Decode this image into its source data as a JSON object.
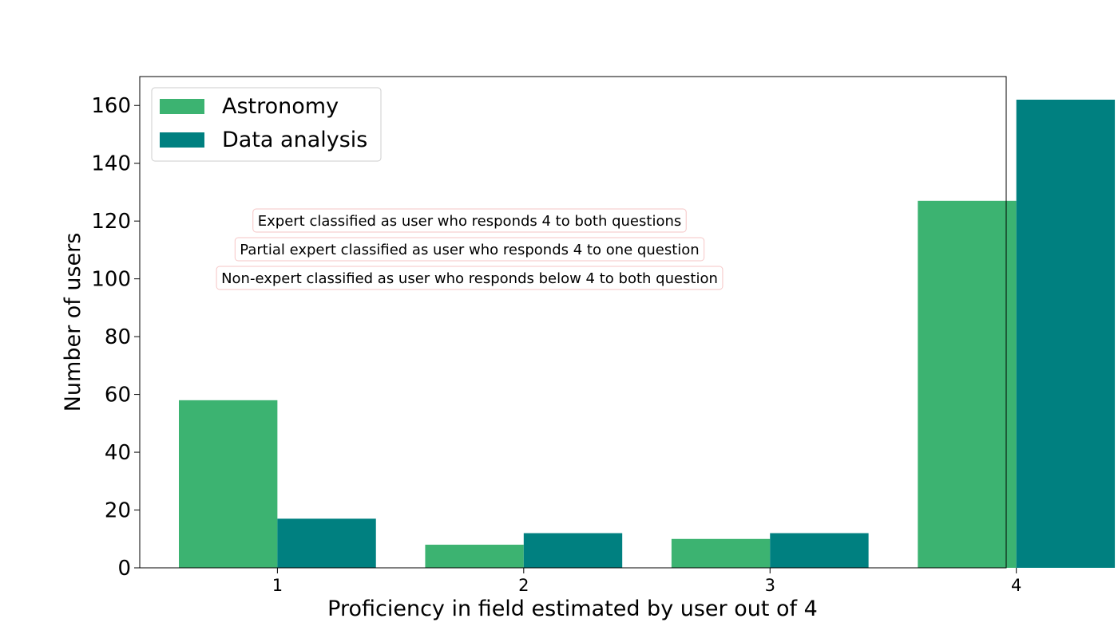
{
  "chart_data": {
    "type": "bar",
    "categories": [
      "1",
      "2",
      "3",
      "4"
    ],
    "series": [
      {
        "name": "Astronomy",
        "values": [
          58,
          8,
          10,
          127
        ],
        "color": "#3cb371"
      },
      {
        "name": "Data analysis",
        "values": [
          17,
          12,
          12,
          162
        ],
        "color": "#008080"
      }
    ],
    "xlabel": "Proficiency in field estimated by user out of 4",
    "ylabel": "Number of users",
    "ylim": [
      0,
      170
    ],
    "yticks": [
      0,
      20,
      40,
      60,
      80,
      100,
      120,
      140,
      160
    ],
    "grid": false,
    "legend_position": "top-left",
    "annotations": [
      "Expert classified as user who responds 4 to both questions",
      "Partial expert classified as user who responds 4 to one question",
      "Non-expert classified as user who responds below 4 to both question"
    ]
  }
}
